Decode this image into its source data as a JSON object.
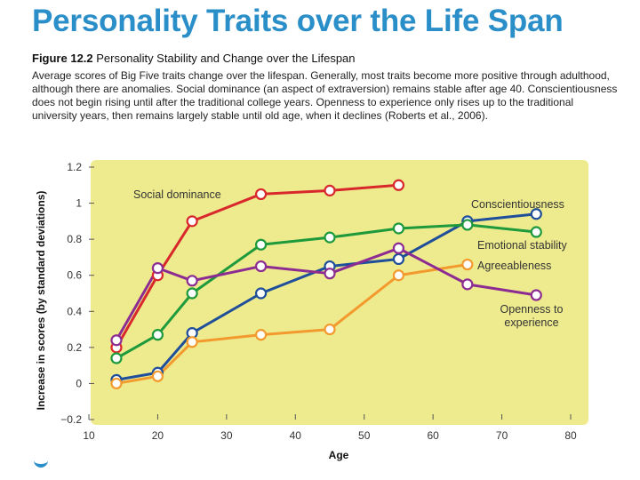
{
  "slide": {
    "title": "Personality Traits over the Life Span",
    "figure_number": "Figure 12.2",
    "figure_title": "Personality Stability and Change over the Lifespan",
    "description": "Average scores of Big Five traits change over the lifespan. Generally, most traits become more positive through adulthood, although there are anomalies. Social dominance (an aspect of extraversion) remains stable after age 40. Conscientiousness does not begin rising until after the traditional college years. Openness to experience only rises up to the traditional university years, then remains largely stable until old age, when it declines (Roberts et al., 2006)."
  },
  "chart_data": {
    "type": "line",
    "title": "",
    "xlabel": "Age",
    "ylabel": "Increase in scores (by standard deviations)",
    "xlim": [
      10,
      80
    ],
    "ylim": [
      -0.2,
      1.2
    ],
    "xticks": [
      10,
      20,
      30,
      40,
      50,
      60,
      70,
      80
    ],
    "yticks": [
      -0.2,
      0,
      0.2,
      0.4,
      0.6,
      0.8,
      1.0,
      1.2
    ],
    "ytick_labels": [
      "−0.2",
      "0",
      "0.2",
      "0.4",
      "0.6",
      "0.8",
      "1",
      "1.2"
    ],
    "grid": false,
    "background_color": "#eeeb8e",
    "series": [
      {
        "name": "Social dominance",
        "color": "#d8282c",
        "x": [
          14,
          20,
          25,
          35,
          45,
          55
        ],
        "y": [
          0.2,
          0.6,
          0.9,
          1.05,
          1.07,
          1.1
        ]
      },
      {
        "name": "Conscientiousness",
        "color": "#1f4e9a",
        "x": [
          14,
          20,
          25,
          35,
          45,
          55,
          65,
          75
        ],
        "y": [
          0.02,
          0.06,
          0.28,
          0.5,
          0.65,
          0.69,
          0.9,
          0.94
        ]
      },
      {
        "name": "Emotional stability",
        "color": "#1e9a3c",
        "x": [
          14,
          20,
          25,
          35,
          45,
          55,
          65,
          75
        ],
        "y": [
          0.14,
          0.27,
          0.5,
          0.77,
          0.81,
          0.86,
          0.88,
          0.84
        ]
      },
      {
        "name": "Agreeableness",
        "color": "#f39a2e",
        "x": [
          14,
          20,
          25,
          35,
          45,
          55,
          65
        ],
        "y": [
          0.0,
          0.04,
          0.23,
          0.27,
          0.3,
          0.6,
          0.66
        ]
      },
      {
        "name": "Openness to experience",
        "color": "#8c2c92",
        "x": [
          14,
          20,
          25,
          35,
          45,
          55,
          65,
          75
        ],
        "y": [
          0.24,
          0.64,
          0.57,
          0.65,
          0.61,
          0.75,
          0.55,
          0.49
        ]
      }
    ]
  }
}
